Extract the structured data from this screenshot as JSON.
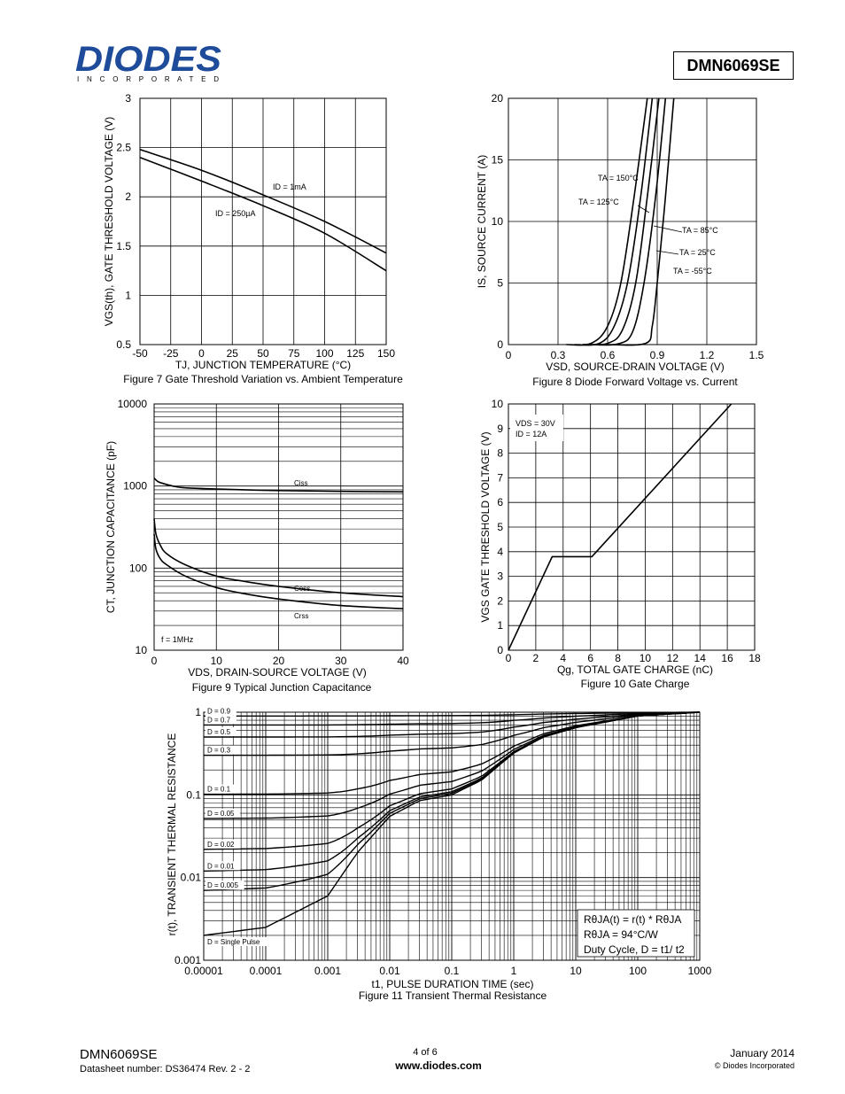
{
  "header": {
    "brand": "DIODES",
    "brand_sub": "I N C O R P O R A T E D",
    "part_number": "DMN6069SE"
  },
  "footer": {
    "part_number": "DMN6069SE",
    "datasheet": "Datasheet number: DS36474 Rev. 2 - 2",
    "page": "4 of 6",
    "website": "www.diodes.com",
    "date": "January 2014",
    "copyright": "© Diodes Incorporated"
  },
  "chart_data": [
    {
      "id": "fig7",
      "type": "line",
      "caption": "Figure 7 Gate Threshold Variation vs. Ambient Temperature",
      "xlabel": "TJ, JUNCTION TEMPERATURE (°C)",
      "ylabel": "VGS(th), GATE THRESHOLD VOLTAGE (V)",
      "xlim": [
        -50,
        150
      ],
      "ylim": [
        0.5,
        3
      ],
      "xticks": [
        -50,
        -25,
        0,
        25,
        50,
        75,
        100,
        125,
        150
      ],
      "yticks": [
        0.5,
        1,
        1.5,
        2,
        2.5,
        3
      ],
      "series": [
        {
          "name": "ID = 1mA",
          "x": [
            -50,
            0,
            50,
            100,
            150
          ],
          "y": [
            2.48,
            2.27,
            2.02,
            1.75,
            1.43
          ]
        },
        {
          "name": "ID = 250µA",
          "x": [
            -50,
            0,
            50,
            100,
            150
          ],
          "y": [
            2.4,
            2.16,
            1.91,
            1.63,
            1.25
          ]
        }
      ]
    },
    {
      "id": "fig8",
      "type": "line",
      "caption": "Figure 8 Diode Forward Voltage vs. Current",
      "xlabel": "VSD, SOURCE-DRAIN VOLTAGE (V)",
      "ylabel": "IS, SOURCE CURRENT (A)",
      "xlim": [
        0,
        1.5
      ],
      "ylim": [
        0,
        20
      ],
      "xticks": [
        0,
        0.3,
        0.6,
        0.9,
        1.2,
        1.5
      ],
      "yticks": [
        0,
        5,
        10,
        15,
        20
      ],
      "series": [
        {
          "name": "TA = 150°C",
          "x": [
            0.35,
            0.5,
            0.6,
            0.68,
            0.76,
            0.84
          ],
          "y": [
            0,
            0.1,
            1.5,
            5,
            12,
            20
          ]
        },
        {
          "name": "TA = 125°C",
          "x": [
            0.4,
            0.55,
            0.64,
            0.72,
            0.8,
            0.87
          ],
          "y": [
            0,
            0.1,
            1.5,
            5,
            12,
            20
          ]
        },
        {
          "name": "TA = 85°C",
          "x": [
            0.45,
            0.6,
            0.69,
            0.77,
            0.84,
            0.91
          ],
          "y": [
            0,
            0.1,
            1.2,
            5,
            12,
            20
          ]
        },
        {
          "name": "TA = 25°C",
          "x": [
            0.5,
            0.66,
            0.75,
            0.82,
            0.89,
            0.95
          ],
          "y": [
            0,
            0.05,
            1,
            5,
            12,
            20
          ]
        },
        {
          "name": "TA = -55°C",
          "x": [
            0.6,
            0.83,
            0.87,
            0.9,
            0.95,
            1.0
          ],
          "y": [
            0,
            0.1,
            1.5,
            5,
            12,
            20
          ]
        }
      ]
    },
    {
      "id": "fig9",
      "type": "line",
      "caption": "Figure 9 Typical Junction Capacitance",
      "xlabel": "VDS, DRAIN-SOURCE VOLTAGE (V)",
      "ylabel": "CT, JUNCTION CAPACITANCE (pF)",
      "yscale": "log",
      "xlim": [
        0,
        40
      ],
      "ylim": [
        10,
        10000
      ],
      "xticks": [
        0,
        10,
        20,
        30,
        40
      ],
      "yticks": [
        10,
        100,
        1000,
        10000
      ],
      "note": "f = 1MHz",
      "series": [
        {
          "name": "Ciss",
          "x": [
            0,
            0.5,
            1,
            3,
            5,
            10,
            20,
            30,
            40
          ],
          "y": [
            1250,
            1150,
            1100,
            1000,
            950,
            920,
            880,
            860,
            850
          ]
        },
        {
          "name": "Coss",
          "x": [
            0,
            0.3,
            1,
            2,
            5,
            10,
            15,
            20,
            30,
            40
          ],
          "y": [
            400,
            260,
            190,
            150,
            110,
            80,
            68,
            60,
            50,
            45
          ]
        },
        {
          "name": "Crss",
          "x": [
            0,
            0.3,
            1,
            2,
            5,
            10,
            15,
            20,
            30,
            40
          ],
          "y": [
            260,
            170,
            130,
            110,
            80,
            58,
            48,
            42,
            35,
            32
          ]
        }
      ]
    },
    {
      "id": "fig10",
      "type": "line",
      "caption": "Figure 10 Gate Charge",
      "xlabel": "Qg, TOTAL GATE CHARGE (nC)",
      "ylabel": "VGS GATE THRESHOLD VOLTAGE (V)",
      "xlim": [
        0,
        18
      ],
      "ylim": [
        0,
        10
      ],
      "xticks": [
        0,
        2,
        4,
        6,
        8,
        10,
        12,
        14,
        16,
        18
      ],
      "yticks": [
        0,
        1,
        2,
        3,
        4,
        5,
        6,
        7,
        8,
        9,
        10
      ],
      "conditions": [
        "VDS = 30V",
        "ID = 12A"
      ],
      "series": [
        {
          "name": "VGS",
          "x": [
            0,
            3.2,
            6.1,
            16.3
          ],
          "y": [
            0,
            3.8,
            3.8,
            10
          ]
        }
      ]
    },
    {
      "id": "fig11",
      "type": "line",
      "caption": "Figure 11 Transient Thermal Resistance",
      "xlabel": "t1, PULSE DURATION TIME (sec)",
      "ylabel": "r(t), TRANSIENT THERMAL RESISTANCE",
      "xscale": "log",
      "yscale": "log",
      "xlim": [
        1e-05,
        1000
      ],
      "ylim": [
        0.001,
        1
      ],
      "xticks": [
        "0.00001",
        "0.0001",
        "0.001",
        "0.01",
        "0.1",
        "1",
        "10",
        "100",
        "1000"
      ],
      "yticks": [
        "0.001",
        "0.01",
        "0.1",
        "1"
      ],
      "formula": [
        "RθJA(t) = r(t) * RθJA",
        "RθJA = 94°C/W",
        "Duty Cycle, D = t1/ t2"
      ],
      "single_pulse": {
        "x": [
          1e-05,
          0.0001,
          0.001,
          0.003,
          0.01,
          0.03,
          0.1,
          0.3,
          1,
          3,
          10,
          100,
          1000
        ],
        "y": [
          0.002,
          0.0025,
          0.006,
          0.02,
          0.055,
          0.085,
          0.1,
          0.15,
          0.32,
          0.5,
          0.65,
          0.9,
          1.0
        ]
      },
      "duty_labels": [
        "D = 0.9",
        "D = 0.7",
        "D = 0.5",
        "D = 0.3",
        "D = 0.1",
        "D = 0.05",
        "D = 0.02",
        "D = 0.01",
        "D = 0.005",
        "D = Single Pulse"
      ],
      "duty_values": [
        0.9,
        0.7,
        0.5,
        0.3,
        0.1,
        0.05,
        0.02,
        0.01,
        0.005,
        0
      ]
    }
  ]
}
